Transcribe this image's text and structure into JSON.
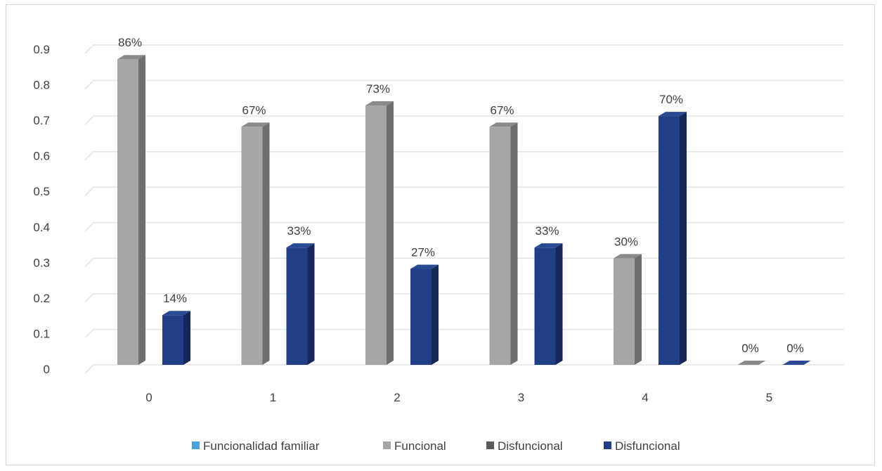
{
  "chart_data": {
    "type": "bar",
    "categories": [
      "0",
      "1",
      "2",
      "3",
      "4",
      "5"
    ],
    "series": [
      {
        "name": "Funcional",
        "values": [
          0.86,
          0.67,
          0.73,
          0.67,
          0.3,
          0.0
        ],
        "labels": [
          "86%",
          "67%",
          "73%",
          "67%",
          "30%",
          "0%"
        ]
      },
      {
        "name": "Disfuncional",
        "values": [
          0.14,
          0.33,
          0.27,
          0.33,
          0.7,
          0.0
        ],
        "labels": [
          "14%",
          "33%",
          "27%",
          "33%",
          "70%",
          "0%"
        ]
      }
    ],
    "y_ticks": [
      "0",
      "0.1",
      "0.2",
      "0.3",
      "0.4",
      "0.5",
      "0.6",
      "0.7",
      "0.8",
      "0.9"
    ],
    "ylim": [
      0,
      0.9
    ],
    "grid": true,
    "legend_position": "bottom",
    "legend": [
      {
        "label": "Funcionalidad familiar",
        "color": "#4aa3df"
      },
      {
        "label": "Funcional",
        "color": "#a6a6a6"
      },
      {
        "label": "Disfuncional",
        "color": "#5a5a5a"
      },
      {
        "label": "Disfuncional",
        "color": "#203f86"
      }
    ],
    "colors": {
      "funcional_front": "#a6a6a6",
      "funcional_side": "#6f6f6f",
      "funcional_top": "#8a8a8a",
      "disfuncional_front": "#203f86",
      "disfuncional_side": "#16285a",
      "disfuncional_top": "#2a4b94",
      "grid": "#e3e3e3"
    }
  }
}
